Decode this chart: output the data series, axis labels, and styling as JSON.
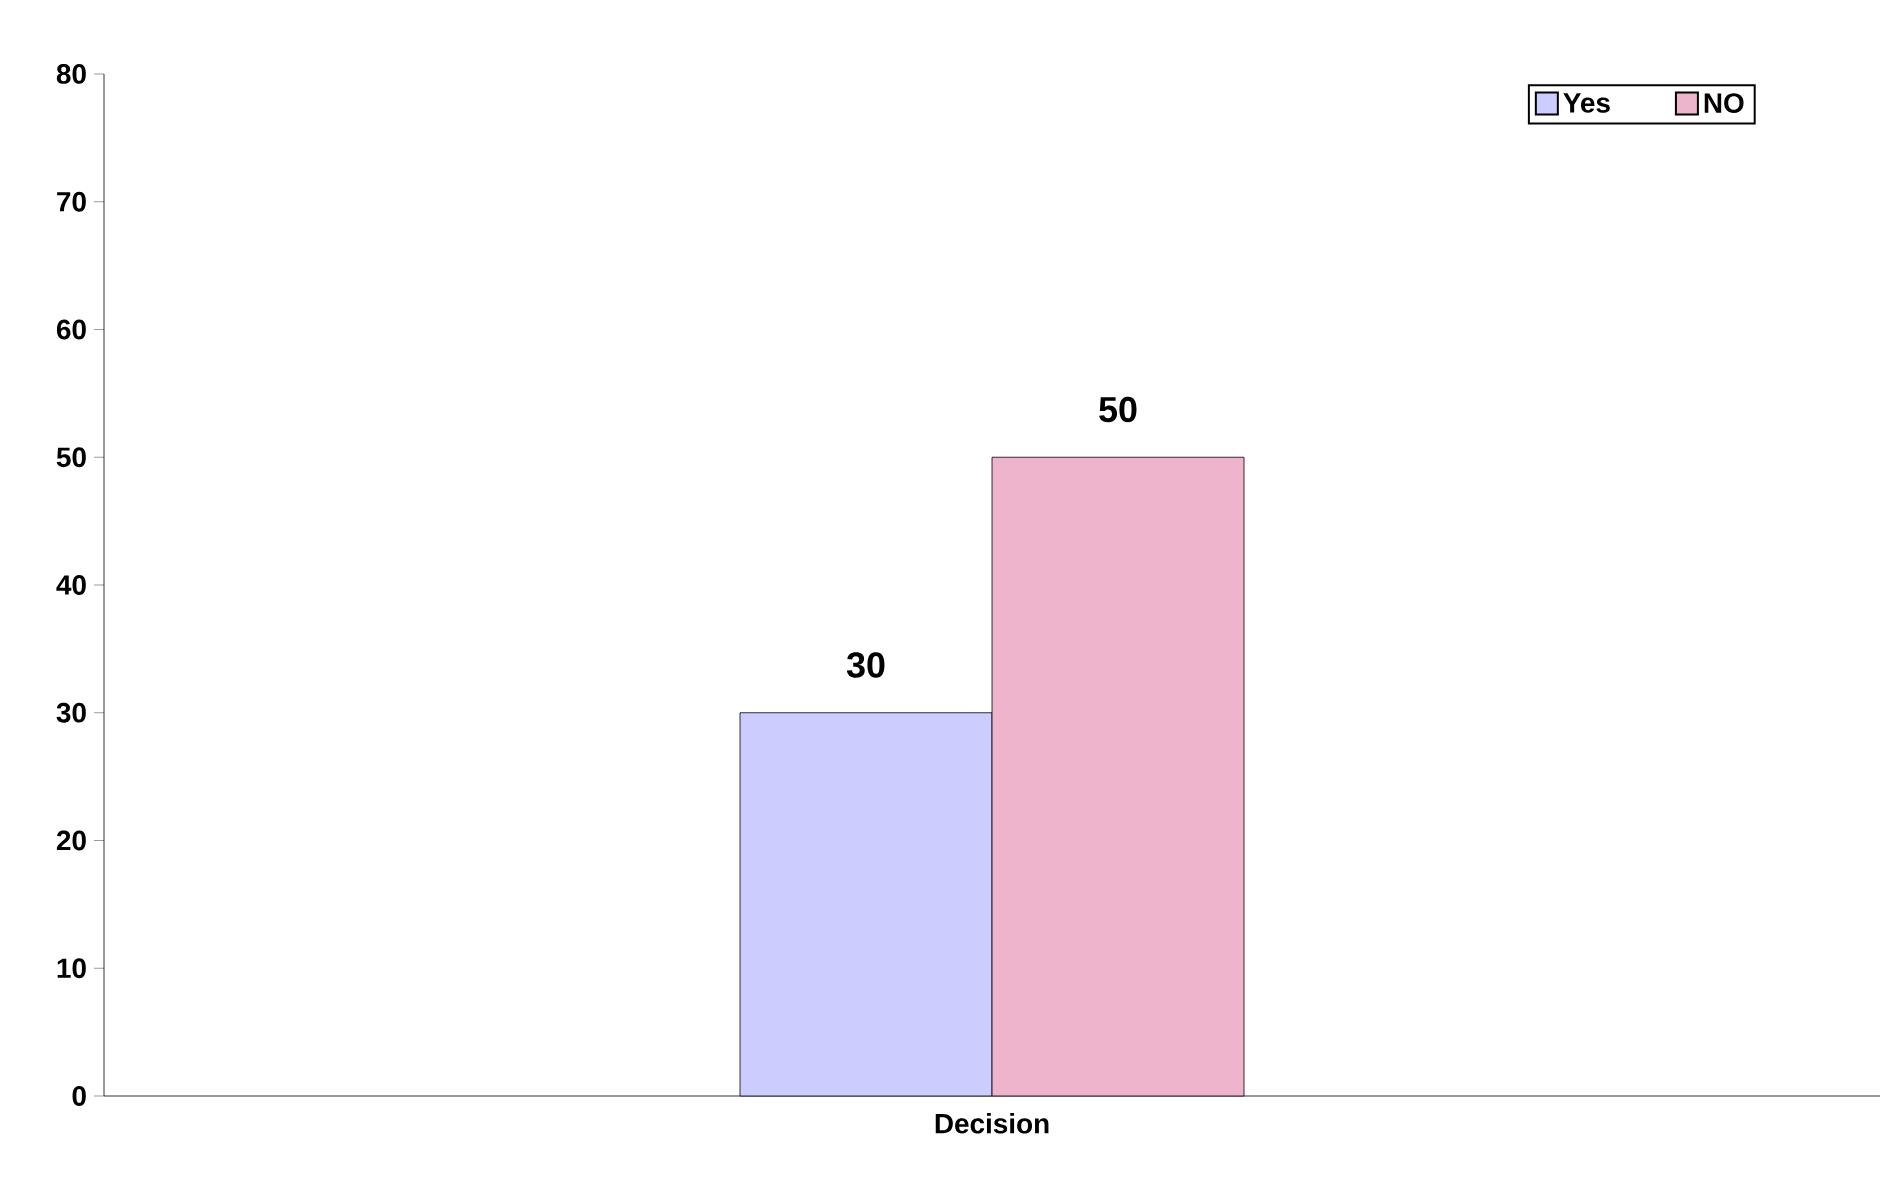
{
  "chart_data": {
    "type": "bar",
    "categories": [
      "Decision"
    ],
    "series": [
      {
        "name": "Yes",
        "color": "#ccccff",
        "values": [
          30
        ]
      },
      {
        "name": "NO",
        "color": "#eeb4cc",
        "values": [
          50
        ]
      }
    ],
    "ylim": [
      0,
      80
    ],
    "yticks": [
      0,
      10,
      20,
      30,
      40,
      50,
      60,
      70,
      80
    ],
    "data_labels": true,
    "grid": false,
    "legend": "top right"
  }
}
